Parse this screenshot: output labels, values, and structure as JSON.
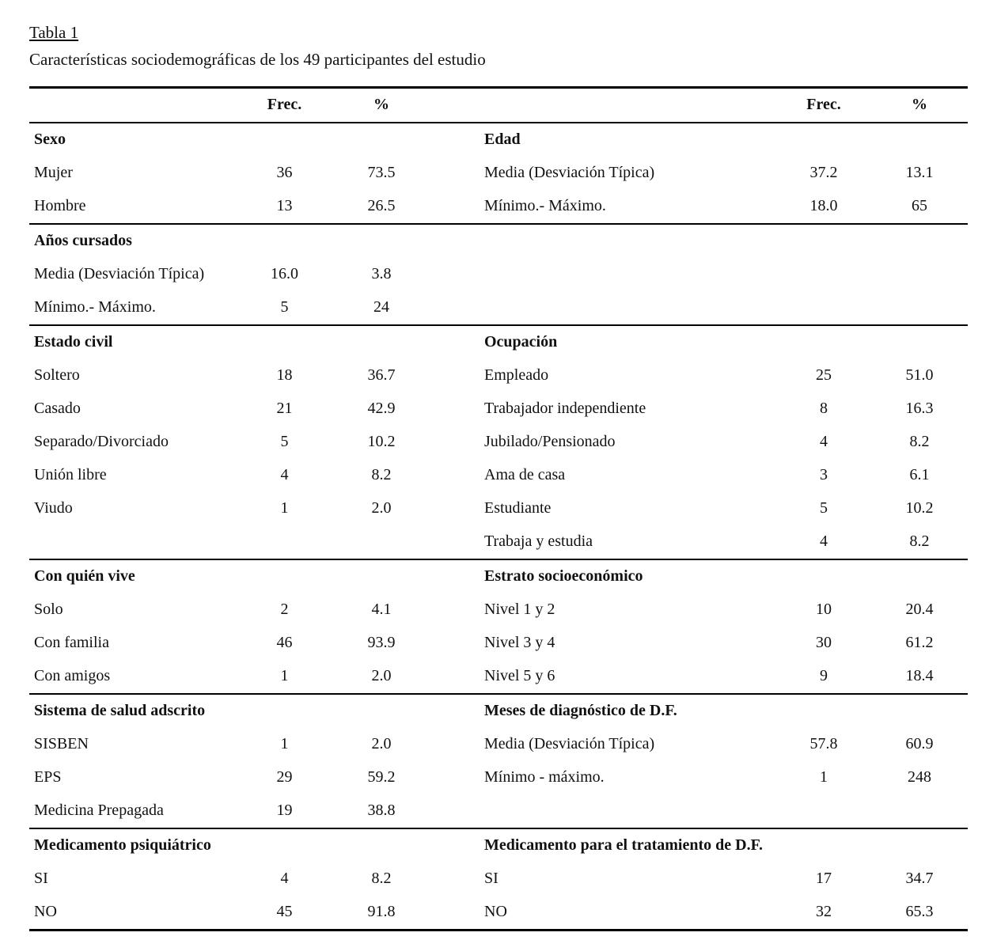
{
  "page": {
    "title": "Tabla 1",
    "subtitle": "Características sociodemográficas de los 49 participantes del estudio"
  },
  "table": {
    "header": {
      "freq": "Frec.",
      "pct": "%"
    },
    "sections": [
      {
        "left": {
          "heading": "Sexo",
          "rows": [
            {
              "label": "Mujer",
              "freq": "36",
              "pct": "73.5"
            },
            {
              "label": "Hombre",
              "freq": "13",
              "pct": "26.5"
            }
          ]
        },
        "right": {
          "heading": "Edad",
          "rows": [
            {
              "label": "Media (Desviación Típica)",
              "freq": "37.2",
              "pct": "13.1"
            },
            {
              "label": "Mínimo.- Máximo.",
              "freq": "18.0",
              "pct": "65"
            }
          ]
        }
      },
      {
        "left": {
          "heading": "Años cursados",
          "rows": [
            {
              "label": "Media (Desviación Típica)",
              "freq": "16.0",
              "pct": "3.8"
            },
            {
              "label": "Mínimo.- Máximo.",
              "freq": "5",
              "pct": "24"
            }
          ]
        },
        "right": null
      },
      {
        "left": {
          "heading": "Estado civil",
          "rows": [
            {
              "label": "Soltero",
              "freq": "18",
              "pct": "36.7"
            },
            {
              "label": "Casado",
              "freq": "21",
              "pct": "42.9"
            },
            {
              "label": "Separado/Divorciado",
              "freq": "5",
              "pct": "10.2"
            },
            {
              "label": "Unión libre",
              "freq": "4",
              "pct": "8.2"
            },
            {
              "label": "Viudo",
              "freq": "1",
              "pct": "2.0"
            }
          ]
        },
        "right": {
          "heading": "Ocupación",
          "rows": [
            {
              "label": "Empleado",
              "freq": "25",
              "pct": "51.0"
            },
            {
              "label": "Trabajador independiente",
              "freq": "8",
              "pct": "16.3"
            },
            {
              "label": "Jubilado/Pensionado",
              "freq": "4",
              "pct": "8.2"
            },
            {
              "label": "Ama de casa",
              "freq": "3",
              "pct": "6.1"
            },
            {
              "label": "Estudiante",
              "freq": "5",
              "pct": "10.2"
            },
            {
              "label": "Trabaja y estudia",
              "freq": "4",
              "pct": "8.2"
            }
          ]
        }
      },
      {
        "left": {
          "heading": "Con quién vive",
          "rows": [
            {
              "label": "Solo",
              "freq": "2",
              "pct": "4.1"
            },
            {
              "label": "Con familia",
              "freq": "46",
              "pct": "93.9"
            },
            {
              "label": "Con amigos",
              "freq": "1",
              "pct": "2.0"
            }
          ]
        },
        "right": {
          "heading": "Estrato socioeconómico",
          "rows": [
            {
              "label": "Nivel 1 y 2",
              "freq": "10",
              "pct": "20.4"
            },
            {
              "label": "Nivel 3 y 4",
              "freq": "30",
              "pct": "61.2"
            },
            {
              "label": "Nivel 5 y 6",
              "freq": "9",
              "pct": "18.4"
            }
          ]
        }
      },
      {
        "left": {
          "heading": "Sistema de salud adscrito",
          "rows": [
            {
              "label": "SISBEN",
              "freq": "1",
              "pct": "2.0"
            },
            {
              "label": "EPS",
              "freq": "29",
              "pct": "59.2"
            },
            {
              "label": "Medicina Prepagada",
              "freq": "19",
              "pct": "38.8"
            }
          ]
        },
        "right": {
          "heading": "Meses de diagnóstico de D.F.",
          "rows": [
            {
              "label": "Media (Desviación Típica)",
              "freq": "57.8",
              "pct": "60.9"
            },
            {
              "label": "Mínimo - máximo.",
              "freq": "1",
              "pct": "248"
            }
          ]
        }
      },
      {
        "left": {
          "heading": "Medicamento psiquiátrico",
          "rows": [
            {
              "label": "SI",
              "freq": "4",
              "pct": "8.2"
            },
            {
              "label": "NO",
              "freq": "45",
              "pct": "91.8"
            }
          ]
        },
        "right": {
          "heading": "Medicamento para el tratamiento de D.F.",
          "rows": [
            {
              "label": "SI",
              "freq": "17",
              "pct": "34.7"
            },
            {
              "label": "NO",
              "freq": "32",
              "pct": "65.3"
            }
          ]
        }
      }
    ]
  }
}
